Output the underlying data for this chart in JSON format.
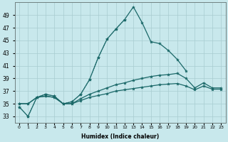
{
  "xlabel": "Humidex (Indice chaleur)",
  "background_color": "#c8e8ec",
  "grid_color": "#a8ccd0",
  "line_color": "#1a6868",
  "x": [
    0,
    1,
    2,
    3,
    4,
    5,
    6,
    7,
    8,
    9,
    10,
    11,
    12,
    13,
    14,
    15,
    16,
    17,
    18,
    19,
    20,
    21,
    22,
    23
  ],
  "line1": [
    34.5,
    33.0,
    36.0,
    36.5,
    36.2,
    35.0,
    35.3,
    36.5,
    38.8,
    42.3,
    45.2,
    46.8,
    48.3,
    50.3,
    47.8,
    44.8,
    44.5,
    43.4,
    42.0,
    40.2,
    null,
    null,
    null,
    null
  ],
  "line2": [
    null,
    null,
    null,
    null,
    null,
    null,
    null,
    null,
    null,
    null,
    null,
    null,
    null,
    null,
    null,
    null,
    null,
    null,
    null,
    null,
    null,
    null,
    null,
    null
  ],
  "line3": [
    35.0,
    35.0,
    36.0,
    36.2,
    36.0,
    35.0,
    35.0,
    35.8,
    36.5,
    37.0,
    37.5,
    38.0,
    38.3,
    38.7,
    39.0,
    39.3,
    39.5,
    39.6,
    39.8,
    39.0,
    37.5,
    38.3,
    37.5,
    37.5
  ],
  "line4": [
    35.0,
    35.0,
    36.0,
    36.2,
    36.0,
    35.0,
    35.0,
    35.5,
    36.0,
    36.3,
    36.6,
    37.0,
    37.2,
    37.4,
    37.6,
    37.8,
    38.0,
    38.1,
    38.2,
    37.8,
    37.2,
    37.8,
    37.3,
    37.3
  ],
  "line_dotted": [
    34.5,
    33.0,
    36.0,
    36.5,
    36.2,
    35.0,
    35.3,
    36.5,
    38.8,
    42.3,
    45.2,
    46.8,
    48.3,
    null,
    null,
    null,
    null,
    null,
    null,
    null,
    null,
    null,
    null,
    null
  ],
  "ylim": [
    32,
    51
  ],
  "xlim": [
    -0.5,
    23.5
  ],
  "yticks": [
    33,
    35,
    37,
    39,
    41,
    43,
    45,
    47,
    49
  ]
}
